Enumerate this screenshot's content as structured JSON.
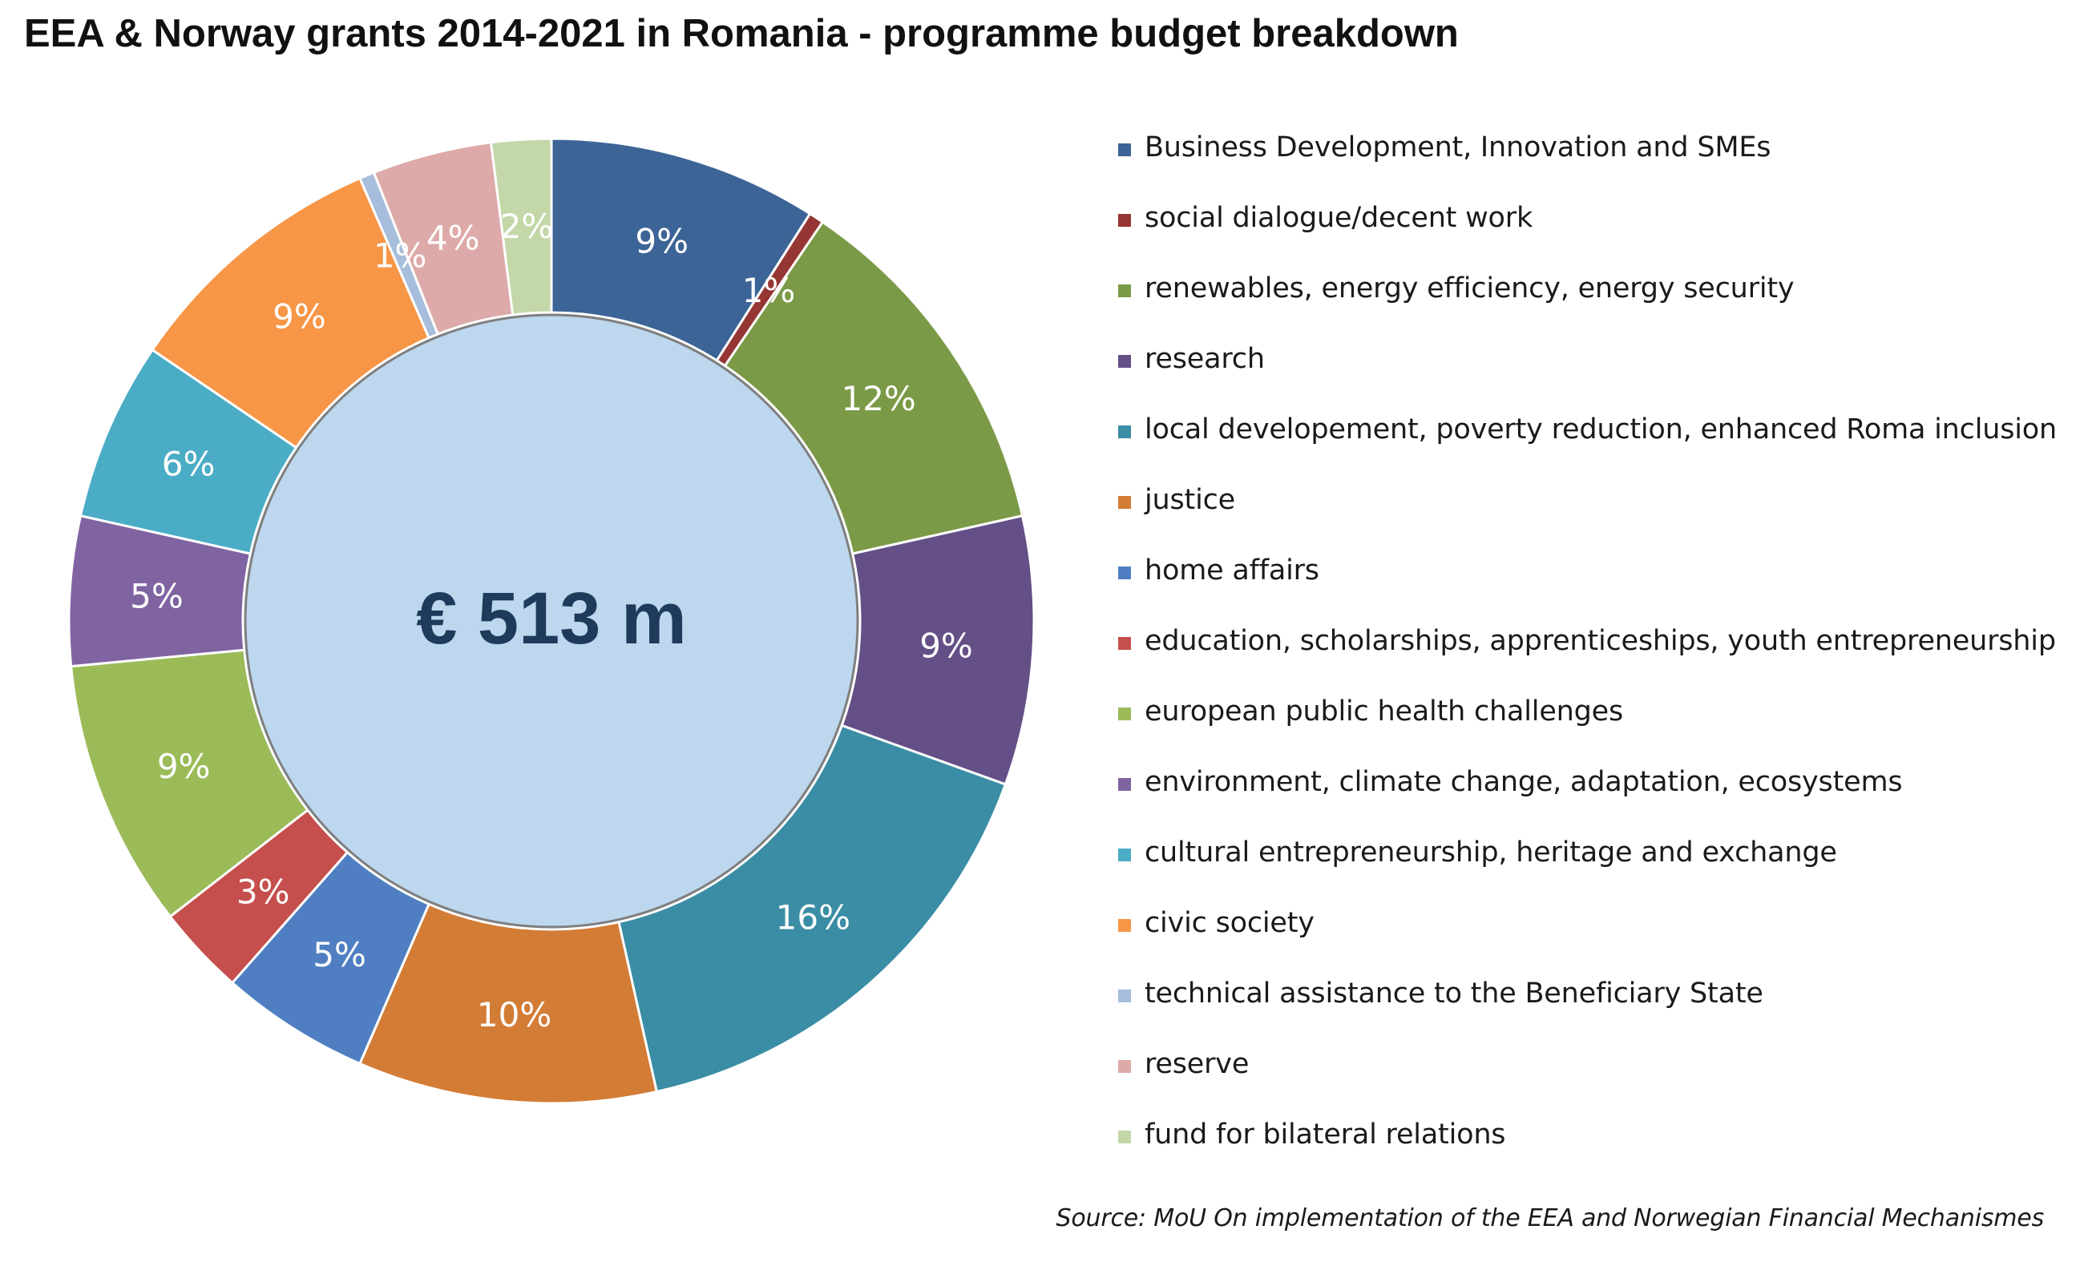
{
  "chart_data": {
    "type": "pie",
    "subtype": "donut",
    "title": "EEA & Norway grants 2014-2021 in Romania -  programme budget breakdown",
    "center_label": "€ 513 m",
    "source": "Source: MoU On implementation of the EEA and Norwegian Financial Mechanismes",
    "legend_position": "right",
    "unit": "%",
    "slices": [
      {
        "name": "Business Development, Innovation and SMEs",
        "value": 9,
        "label": "9%",
        "color": "#3c6497"
      },
      {
        "name": "social dialogue/decent work",
        "value": 0.5,
        "label": "1%",
        "color": "#963634"
      },
      {
        "name": "renewables, energy efficiency, energy security",
        "value": 12,
        "label": "12%",
        "color": "#7b9a47"
      },
      {
        "name": "research",
        "value": 9,
        "label": "9%",
        "color": "#644f87"
      },
      {
        "name": "local developement, poverty reduction, enhanced Roma inclusion",
        "value": 16,
        "label": "16%",
        "color": "#3a8da4"
      },
      {
        "name": "justice",
        "value": 10,
        "label": "10%",
        "color": "#d37c36"
      },
      {
        "name": "home affairs",
        "value": 5,
        "label": "5%",
        "color": "#4f7fc2"
      },
      {
        "name": "education, scholarships, apprenticeships, youth entrepreneurship",
        "value": 3,
        "label": "3%",
        "color": "#c54f4c"
      },
      {
        "name": "european public health challenges",
        "value": 9,
        "label": "9%",
        "color": "#9bbb59"
      },
      {
        "name": "environment, climate change, adaptation, ecosystems",
        "value": 5,
        "label": "5%",
        "color": "#8064a2"
      },
      {
        "name": "cultural entrepreneurship, heritage and exchange",
        "value": 6,
        "label": "6%",
        "color": "#4bacc6"
      },
      {
        "name": "civic society",
        "value": 9,
        "label": "9%",
        "color": "#f79646"
      },
      {
        "name": "technical assistance to the Beneficiary State",
        "value": 0.5,
        "label": "1%",
        "color": "#a6bddb"
      },
      {
        "name": "reserve",
        "value": 4,
        "label": "4%",
        "color": "#deaaa9"
      },
      {
        "name": "fund for bilateral relations",
        "value": 2,
        "label": "2%",
        "color": "#c4d7a8"
      }
    ],
    "colors": {
      "center_fill": "#bdd7ee",
      "center_text": "#203a5c",
      "slice_label": "#ffffff"
    }
  }
}
